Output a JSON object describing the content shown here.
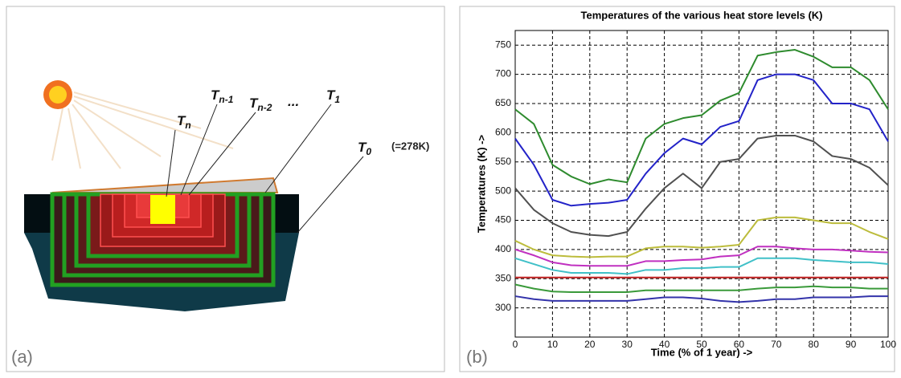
{
  "panel_a": {
    "label": "(a)",
    "levels": [
      {
        "base": "T",
        "sub": "n"
      },
      {
        "base": "T",
        "sub": "n-1"
      },
      {
        "base": "T",
        "sub": "n-2"
      },
      {
        "base": "...",
        "sub": ""
      },
      {
        "base": "T",
        "sub": "1"
      },
      {
        "base": "T",
        "sub": "0"
      }
    ],
    "note": "(=278K)"
  },
  "panel_b_label": "(b)",
  "chart_data": {
    "type": "line",
    "title": "Temperatures of the various heat store levels (K)",
    "xlabel": "Time (% of 1 year) ->",
    "ylabel": "Temperatures (K) ->",
    "x": [
      0,
      5,
      10,
      15,
      20,
      25,
      30,
      35,
      40,
      45,
      50,
      55,
      60,
      65,
      70,
      75,
      80,
      85,
      90,
      95,
      100
    ],
    "xlim": [
      0,
      100
    ],
    "xticks": [
      0,
      10,
      20,
      30,
      40,
      50,
      60,
      70,
      80,
      90,
      100
    ],
    "ylim": [
      250,
      775
    ],
    "yticks": [
      300,
      350,
      400,
      450,
      500,
      550,
      600,
      650,
      700,
      750
    ],
    "grid": true,
    "series": [
      {
        "color": "#2e8b2e",
        "values": [
          640,
          615,
          545,
          525,
          512,
          520,
          515,
          590,
          615,
          625,
          630,
          655,
          668,
          732,
          738,
          742,
          730,
          712,
          712,
          690,
          640
        ]
      },
      {
        "color": "#2323c8",
        "values": [
          590,
          545,
          485,
          475,
          478,
          480,
          485,
          530,
          565,
          590,
          580,
          610,
          620,
          690,
          700,
          700,
          690,
          650,
          650,
          640,
          585
        ]
      },
      {
        "color": "#505050",
        "values": [
          505,
          468,
          445,
          430,
          425,
          423,
          430,
          470,
          505,
          530,
          505,
          550,
          555,
          590,
          595,
          595,
          585,
          560,
          555,
          540,
          510
        ]
      },
      {
        "color": "#bcbc3c",
        "values": [
          415,
          400,
          390,
          388,
          387,
          388,
          388,
          402,
          405,
          405,
          403,
          405,
          408,
          450,
          455,
          455,
          450,
          445,
          445,
          430,
          418
        ]
      },
      {
        "color": "#c030c0",
        "values": [
          400,
          390,
          378,
          373,
          372,
          372,
          372,
          380,
          380,
          382,
          383,
          388,
          390,
          405,
          405,
          402,
          400,
          400,
          398,
          396,
          395
        ]
      },
      {
        "color": "#40c0c8",
        "values": [
          385,
          375,
          365,
          360,
          360,
          360,
          358,
          365,
          365,
          368,
          368,
          370,
          370,
          385,
          385,
          385,
          382,
          380,
          378,
          378,
          375
        ]
      },
      {
        "color": "#c02020",
        "values": [
          352,
          352,
          352,
          352,
          352,
          352,
          352,
          352,
          352,
          352,
          352,
          352,
          352,
          352,
          352,
          352,
          352,
          352,
          352,
          352,
          352
        ]
      },
      {
        "color": "#3a9a3a",
        "values": [
          340,
          333,
          328,
          327,
          327,
          327,
          327,
          330,
          330,
          330,
          330,
          330,
          330,
          333,
          335,
          335,
          337,
          335,
          335,
          333,
          333
        ]
      },
      {
        "color": "#3333aa",
        "values": [
          320,
          315,
          312,
          312,
          312,
          312,
          312,
          315,
          318,
          318,
          316,
          312,
          310,
          312,
          315,
          315,
          318,
          318,
          318,
          320,
          320
        ]
      }
    ]
  }
}
